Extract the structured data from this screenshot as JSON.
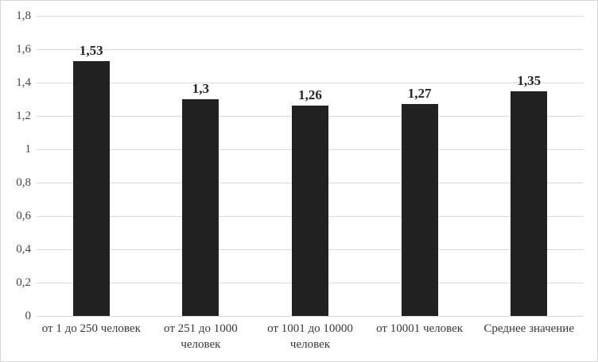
{
  "chart_data": {
    "type": "bar",
    "title": "",
    "categories": [
      "от 1 до 250 человек",
      "от 251 до 1000 человек",
      "от 1001 до 10000 человек",
      "от 10001 человек",
      "Среднее значение"
    ],
    "values": [
      1.53,
      1.3,
      1.26,
      1.27,
      1.35
    ],
    "data_labels": [
      "1,53",
      "1,3",
      "1,26",
      "1,27",
      "1,35"
    ],
    "xlabel": "",
    "ylabel": "",
    "ylim": [
      0,
      1.8
    ],
    "ytick_step": 0.2,
    "ytick_labels": [
      "0",
      "0,2",
      "0,4",
      "0,6",
      "0,8",
      "1",
      "1,2",
      "1,4",
      "1,6",
      "1,8"
    ],
    "grid": true,
    "legend_position": "none",
    "bar_color": "#212121",
    "gridline_color": "#d9d9d9",
    "axis_text_color": "#444444",
    "category_text_color": "#383838",
    "data_label_color": "#262626",
    "frame_border_color": "#d6d6d6",
    "background_color": "#ffffff"
  }
}
